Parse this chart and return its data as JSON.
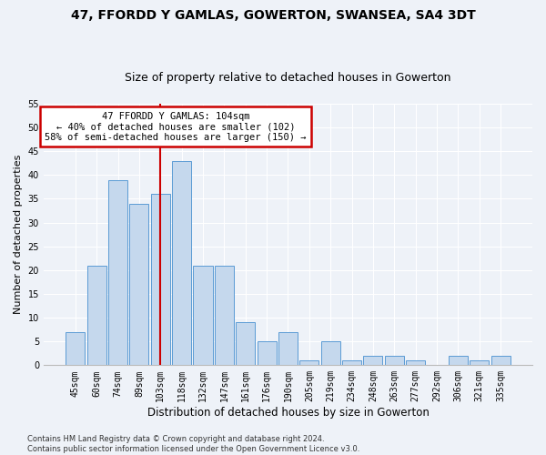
{
  "title": "47, FFORDD Y GAMLAS, GOWERTON, SWANSEA, SA4 3DT",
  "subtitle": "Size of property relative to detached houses in Gowerton",
  "xlabel": "Distribution of detached houses by size in Gowerton",
  "ylabel": "Number of detached properties",
  "categories": [
    "45sqm",
    "60sqm",
    "74sqm",
    "89sqm",
    "103sqm",
    "118sqm",
    "132sqm",
    "147sqm",
    "161sqm",
    "176sqm",
    "190sqm",
    "205sqm",
    "219sqm",
    "234sqm",
    "248sqm",
    "263sqm",
    "277sqm",
    "292sqm",
    "306sqm",
    "321sqm",
    "335sqm"
  ],
  "values": [
    7,
    21,
    39,
    34,
    36,
    43,
    21,
    21,
    9,
    5,
    7,
    1,
    5,
    1,
    2,
    2,
    1,
    0,
    2,
    1,
    2
  ],
  "bar_color": "#c5d8ed",
  "bar_edge_color": "#5b9bd5",
  "highlight_index": 4,
  "annotation_line1": "47 FFORDD Y GAMLAS: 104sqm",
  "annotation_line2": "← 40% of detached houses are smaller (102)",
  "annotation_line3": "58% of semi-detached houses are larger (150) →",
  "annotation_box_color": "#ffffff",
  "annotation_box_edge": "#cc0000",
  "vline_color": "#cc0000",
  "ylim": [
    0,
    55
  ],
  "yticks": [
    0,
    5,
    10,
    15,
    20,
    25,
    30,
    35,
    40,
    45,
    50,
    55
  ],
  "footnote1": "Contains HM Land Registry data © Crown copyright and database right 2024.",
  "footnote2": "Contains public sector information licensed under the Open Government Licence v3.0.",
  "background_color": "#eef2f8",
  "grid_color": "#ffffff",
  "title_fontsize": 10,
  "subtitle_fontsize": 9,
  "tick_fontsize": 7,
  "ylabel_fontsize": 8,
  "xlabel_fontsize": 8.5
}
